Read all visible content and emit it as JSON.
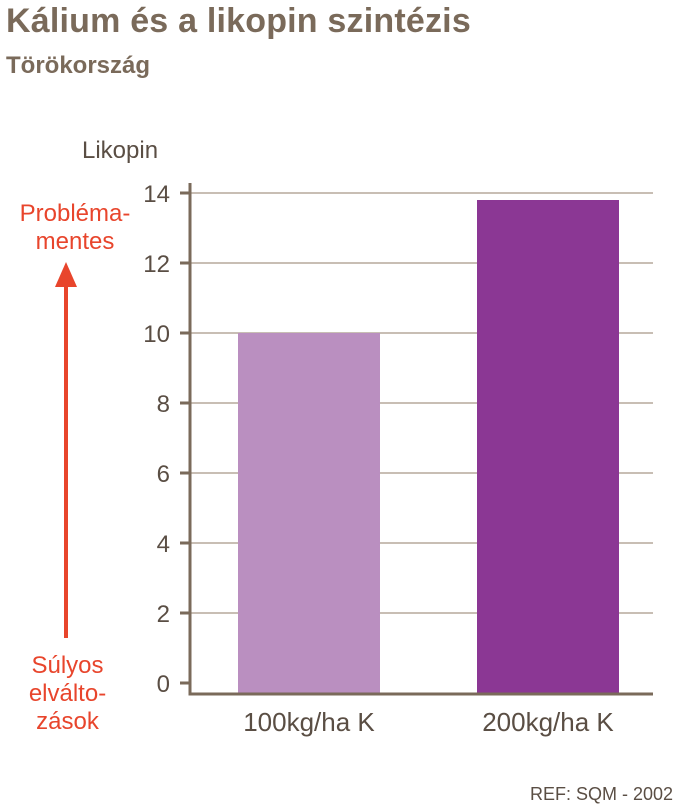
{
  "header": {
    "title": "Kálium és a likopin szintézis",
    "subtitle": "Törökország"
  },
  "side_annotation": {
    "top_line1": "Probléma-",
    "top_line2": "mentes",
    "bottom_line1": "Súlyos",
    "bottom_line2": "elválto-",
    "bottom_line3": "zások"
  },
  "footer": {
    "reference": "REF: SQM - 2002"
  },
  "chart_data": {
    "type": "bar",
    "title": "Kálium és a likopin szintézis",
    "subtitle": "Törökország",
    "ylabel": "Likopin",
    "xlabel": "",
    "categories": [
      "100kg/ha K",
      "200kg/ha K"
    ],
    "values": [
      10.0,
      13.8
    ],
    "ylim": [
      0,
      14
    ],
    "yticks": [
      "0",
      "2",
      "4",
      "6",
      "8",
      "10",
      "12",
      "14"
    ],
    "grid": true,
    "legend": "none",
    "colors": {
      "bar_1": "#ba8fc0",
      "bar_2": "#8b3794",
      "axis": "#7a6a5a",
      "grid": "#a89888",
      "annotation": "#e8452c"
    }
  }
}
